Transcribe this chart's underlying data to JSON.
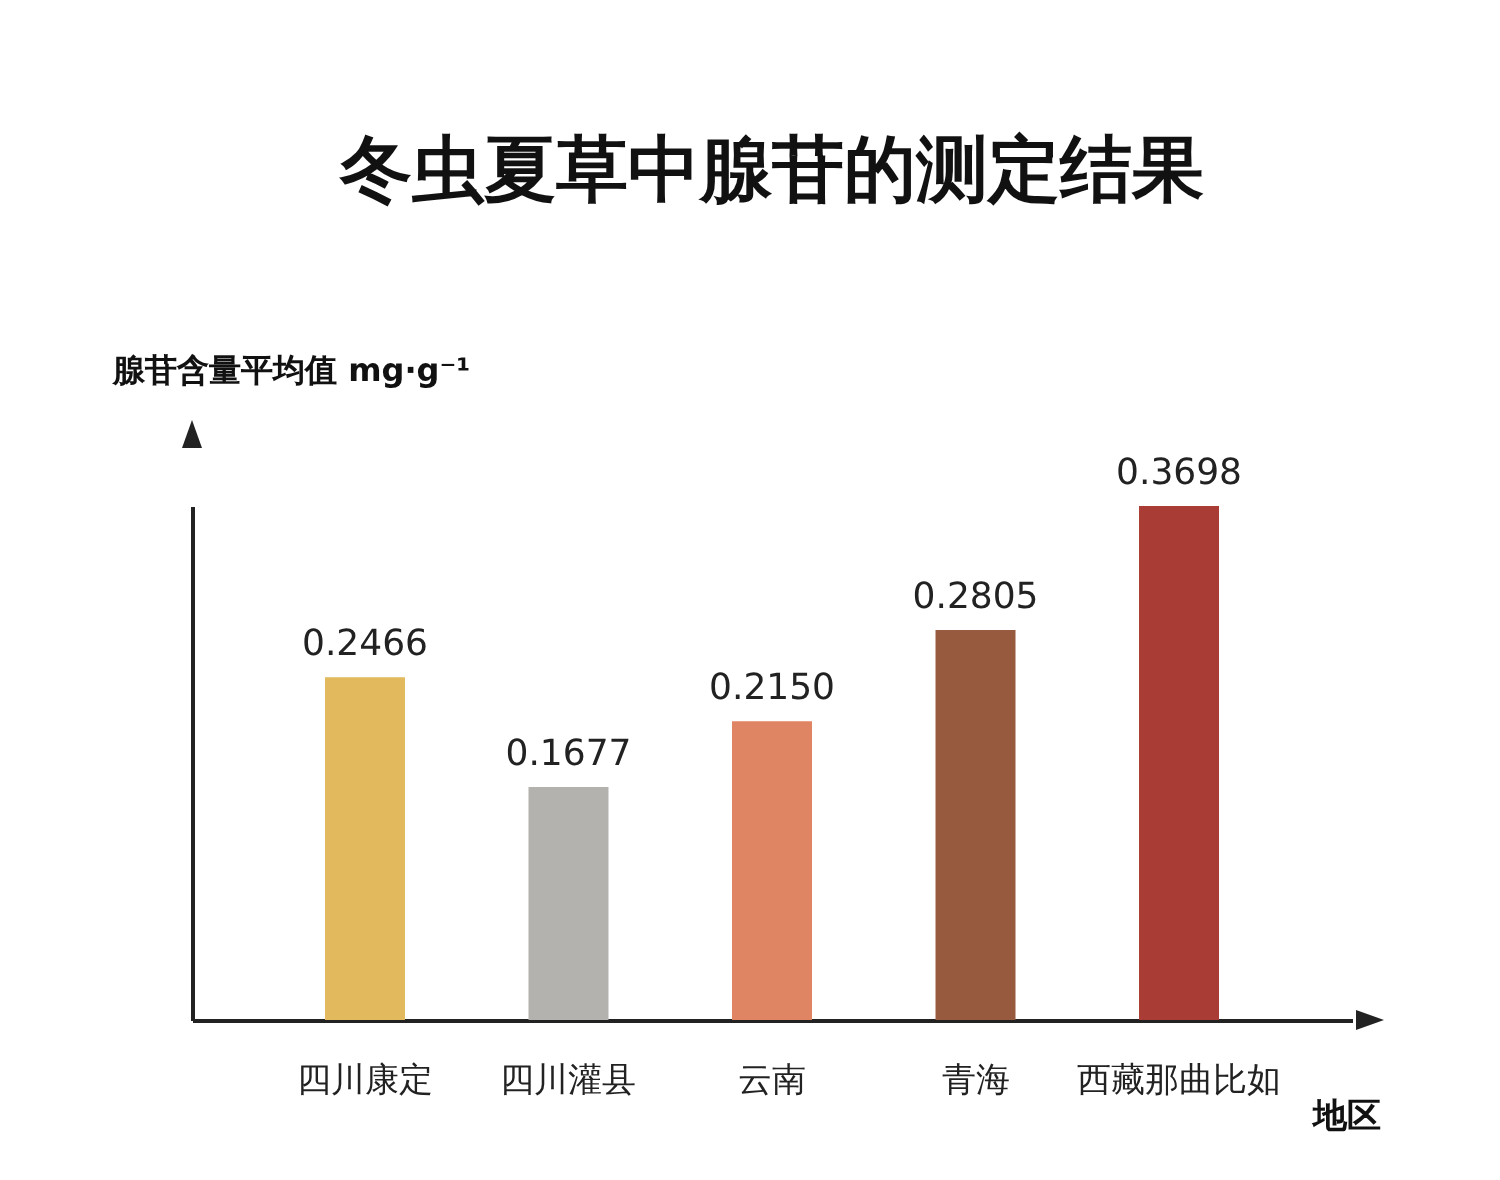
{
  "chart_data": {
    "type": "bar",
    "title": "冬虫夏草中腺苷的测定结果",
    "xlabel": "地区",
    "ylabel": "腺苷含量平均值 mg·g⁻¹",
    "categories": [
      "四川康定",
      "四川灌县",
      "云南",
      "青海",
      "西藏那曲比如"
    ],
    "values": [
      0.2466,
      0.1677,
      0.215,
      0.2805,
      0.3698
    ],
    "colors": [
      "#e2b95c",
      "#b4b2ae",
      "#e08563",
      "#985a3e",
      "#a93d35"
    ],
    "value_labels": [
      "0.2466",
      "0.1677",
      "0.2150",
      "0.2805",
      "0.3698"
    ],
    "tick_labels": "x",
    "grid": false
  }
}
